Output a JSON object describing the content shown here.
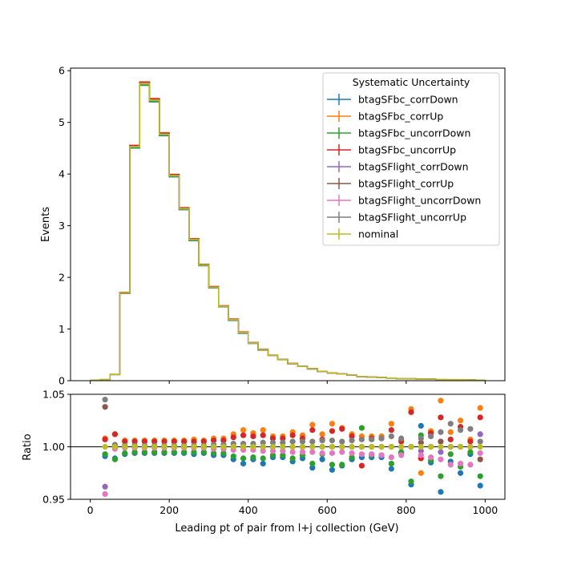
{
  "chart_data": [
    {
      "type": "line",
      "panel": "main",
      "ylabel": "Events",
      "ylim": [
        0,
        6.05
      ],
      "yticks": [
        "0",
        "1",
        "2",
        "3",
        "4",
        "5",
        "6"
      ],
      "xlim": [
        -50,
        1050
      ],
      "xticks": [
        0,
        200,
        400,
        600,
        800,
        1000
      ],
      "grid": false,
      "legend_title": "Systematic Uncertainty",
      "legend_position": "top-right",
      "bin_edges": [
        0,
        25,
        50,
        75,
        100,
        125,
        150,
        175,
        200,
        225,
        250,
        275,
        300,
        325,
        350,
        375,
        400,
        425,
        450,
        475,
        500,
        525,
        550,
        575,
        600,
        625,
        650,
        675,
        700,
        725,
        750,
        775,
        800,
        825,
        850,
        875,
        900,
        925,
        950,
        975,
        1000
      ],
      "nominal": [
        0.01,
        0.02,
        0.12,
        1.7,
        4.53,
        5.75,
        5.43,
        4.77,
        3.97,
        3.33,
        2.73,
        2.24,
        1.81,
        1.44,
        1.18,
        0.93,
        0.73,
        0.6,
        0.49,
        0.41,
        0.33,
        0.28,
        0.23,
        0.18,
        0.15,
        0.13,
        0.11,
        0.08,
        0.07,
        0.06,
        0.05,
        0.04,
        0.04,
        0.03,
        0.03,
        0.02,
        0.02,
        0.02,
        0.015,
        0.01
      ],
      "series": [
        {
          "name": "btagSFbc_corrDown",
          "color": "#1f77b4"
        },
        {
          "name": "btagSFbc_corrUp",
          "color": "#ff7f0e"
        },
        {
          "name": "btagSFbc_uncorrDown",
          "color": "#2ca02c"
        },
        {
          "name": "btagSFbc_uncorrUp",
          "color": "#d62728"
        },
        {
          "name": "btagSFlight_corrDown",
          "color": "#9467bd"
        },
        {
          "name": "btagSFlight_corrUp",
          "color": "#8c564b"
        },
        {
          "name": "btagSFlight_uncorrDown",
          "color": "#e377c2"
        },
        {
          "name": "btagSFlight_uncorrUp",
          "color": "#7f7f7f"
        },
        {
          "name": "nominal",
          "color": "#bcbd22"
        }
      ]
    },
    {
      "type": "scatter",
      "panel": "ratio",
      "xlabel": "Leading pt of pair from l+j collection (GeV)",
      "ylabel": "Ratio",
      "ylim": [
        0.95,
        1.05
      ],
      "yticks": [
        "0.95",
        "1.00",
        "1.05"
      ],
      "xlim": [
        -50,
        1050
      ],
      "xticklabels": [
        "0",
        "200",
        "400",
        "600",
        "800",
        "1000"
      ],
      "reference_line": 1.0,
      "x": [
        37.5,
        62.5,
        87.5,
        112.5,
        137.5,
        162.5,
        187.5,
        212.5,
        237.5,
        262.5,
        287.5,
        312.5,
        337.5,
        362.5,
        387.5,
        412.5,
        437.5,
        462.5,
        487.5,
        512.5,
        537.5,
        562.5,
        587.5,
        612.5,
        637.5,
        662.5,
        687.5,
        712.5,
        737.5,
        762.5,
        787.5,
        812.5,
        837.5,
        862.5,
        887.5,
        912.5,
        937.5,
        962.5,
        987.5
      ],
      "ratios": {
        "btagSFbc_corrDown": [
          0.991,
          0.989,
          0.993,
          0.994,
          0.994,
          0.994,
          0.994,
          0.994,
          0.994,
          0.993,
          0.994,
          0.992,
          0.992,
          0.988,
          0.984,
          0.988,
          0.984,
          0.99,
          0.99,
          0.986,
          0.989,
          0.98,
          0.988,
          0.978,
          0.982,
          0.988,
          0.99,
          0.99,
          0.99,
          0.979,
          0.994,
          0.964,
          1.02,
          0.985,
          0.957,
          0.986,
          0.975,
          0.993,
          0.963
        ],
        "btagSFbc_corrUp": [
          1.008,
          1.012,
          1.006,
          1.006,
          1.006,
          1.006,
          1.006,
          1.006,
          1.006,
          1.007,
          1.006,
          1.008,
          1.008,
          1.012,
          1.016,
          1.013,
          1.016,
          1.01,
          1.01,
          1.014,
          1.011,
          1.021,
          1.012,
          1.022,
          1.018,
          1.012,
          1.01,
          1.01,
          1.01,
          1.022,
          1.006,
          1.036,
          0.975,
          1.015,
          1.044,
          1.014,
          1.025,
          1.007,
          1.037
        ],
        "btagSFbc_uncorrDown": [
          0.993,
          0.988,
          0.994,
          0.995,
          0.995,
          0.995,
          0.995,
          0.995,
          0.995,
          0.995,
          0.995,
          0.994,
          0.994,
          0.991,
          0.989,
          0.99,
          0.989,
          0.992,
          0.992,
          0.989,
          0.992,
          0.984,
          0.993,
          0.983,
          0.983,
          0.99,
          1.018,
          0.992,
          0.992,
          0.984,
          0.995,
          0.967,
          1.011,
          0.987,
          0.972,
          0.993,
          0.981,
          0.995,
          0.972
        ],
        "btagSFbc_uncorrUp": [
          1.007,
          1.012,
          1.005,
          1.005,
          1.005,
          1.005,
          1.005,
          1.005,
          1.005,
          1.005,
          1.005,
          1.006,
          1.006,
          1.009,
          1.011,
          1.01,
          1.011,
          1.008,
          1.008,
          1.011,
          1.008,
          1.016,
          1.007,
          1.015,
          1.017,
          1.01,
          0.982,
          1.008,
          1.008,
          1.016,
          1.005,
          1.033,
          0.989,
          1.013,
          1.028,
          1.007,
          1.019,
          1.005,
          1.028
        ],
        "btagSFlight_corrDown": [
          0.962,
          0.999,
          1.0,
          1.0,
          1.0,
          1.0,
          1.0,
          1.0,
          1.0,
          1.0,
          1.0,
          1.0,
          1.0,
          1.0,
          1.0,
          1.0,
          1.0,
          1.0,
          1.0,
          1.0,
          1.0,
          1.0,
          1.0,
          1.0,
          1.0,
          1.0,
          1.0,
          1.0,
          1.0,
          1.0,
          1.0,
          1.0,
          0.996,
          1.0,
          0.995,
          1.0,
          1.0,
          1.0,
          1.012
        ],
        "btagSFlight_corrUp": [
          1.038,
          1.001,
          1.0,
          1.0,
          1.0,
          1.0,
          1.0,
          1.0,
          1.0,
          1.0,
          1.0,
          1.0,
          1.0,
          1.0,
          1.0,
          1.0,
          1.0,
          1.0,
          1.0,
          1.0,
          1.0,
          1.0,
          1.0,
          1.0,
          1.0,
          1.0,
          1.0,
          1.0,
          1.0,
          1.0,
          1.0,
          1.0,
          1.004,
          1.0,
          1.005,
          1.0,
          1.0,
          1.0,
          0.988
        ],
        "btagSFlight_uncorrDown": [
          0.955,
          0.998,
          0.999,
          0.999,
          0.999,
          0.999,
          0.999,
          0.999,
          0.999,
          0.999,
          0.999,
          0.998,
          0.998,
          0.997,
          0.997,
          0.997,
          0.996,
          0.996,
          0.996,
          0.995,
          0.995,
          0.995,
          0.994,
          0.994,
          0.995,
          0.994,
          0.993,
          0.993,
          0.992,
          0.99,
          0.992,
          1.0,
          0.992,
          0.99,
          0.988,
          0.983,
          0.984,
          0.983,
          0.994
        ],
        "btagSFlight_uncorrUp": [
          1.045,
          1.002,
          1.001,
          1.001,
          1.001,
          1.001,
          1.001,
          1.001,
          1.001,
          1.001,
          1.001,
          1.002,
          1.002,
          1.003,
          1.003,
          1.003,
          1.004,
          1.004,
          1.004,
          1.005,
          1.005,
          1.005,
          1.006,
          1.006,
          1.005,
          1.006,
          1.007,
          1.007,
          1.008,
          1.01,
          1.008,
          1.0,
          1.008,
          1.01,
          1.014,
          1.022,
          1.016,
          1.017,
          1.005
        ],
        "nominal": [
          1.0,
          1.0,
          1.0,
          1.0,
          1.0,
          1.0,
          1.0,
          1.0,
          1.0,
          1.0,
          1.0,
          1.0,
          1.0,
          1.0,
          1.0,
          1.0,
          1.0,
          1.0,
          1.0,
          1.0,
          1.0,
          1.0,
          1.0,
          1.0,
          1.0,
          1.0,
          1.0,
          1.0,
          1.0,
          1.0,
          1.0,
          1.0,
          1.0,
          1.0,
          1.0,
          1.0,
          1.0,
          1.0,
          1.0
        ]
      }
    }
  ]
}
